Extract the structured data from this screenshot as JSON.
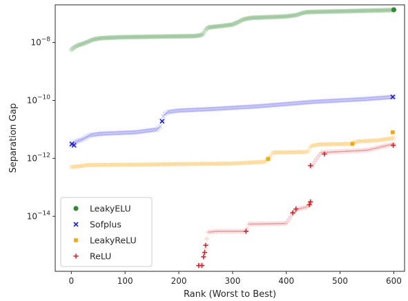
{
  "chart_data": {
    "type": "scatter",
    "xlabel": "Rank (Worst to Best)",
    "ylabel": "Separation Gap",
    "yscale": "log",
    "xlim": [
      -30,
      620
    ],
    "ylim_log10": [
      -15.9,
      -6.7
    ],
    "x_ticks": [
      0,
      100,
      200,
      300,
      400,
      500,
      600
    ],
    "y_ticks": [
      {
        "log10": -8,
        "base": "10",
        "exp": "−8"
      },
      {
        "log10": -10,
        "base": "10",
        "exp": "−10"
      },
      {
        "log10": -12,
        "base": "10",
        "exp": "−12"
      },
      {
        "log10": -14,
        "base": "10",
        "exp": "−14"
      }
    ],
    "grid": false,
    "legend_position": "lower-left",
    "series": [
      {
        "name": "LeakyELU",
        "color": "#2e8b2e",
        "marker": "circle",
        "x_range": [
          0,
          600
        ],
        "profile": [
          [
            0,
            -8.25
          ],
          [
            5,
            -8.17
          ],
          [
            12,
            -8.1
          ],
          [
            25,
            -8.02
          ],
          [
            40,
            -7.9
          ],
          [
            55,
            -7.85
          ],
          [
            90,
            -7.82
          ],
          [
            150,
            -7.8
          ],
          [
            230,
            -7.78
          ],
          [
            240,
            -7.75
          ],
          [
            245,
            -7.72
          ],
          [
            250,
            -7.55
          ],
          [
            255,
            -7.48
          ],
          [
            280,
            -7.43
          ],
          [
            300,
            -7.38
          ],
          [
            310,
            -7.3
          ],
          [
            320,
            -7.2
          ],
          [
            335,
            -7.15
          ],
          [
            400,
            -7.1
          ],
          [
            420,
            -7.05
          ],
          [
            430,
            -6.98
          ],
          [
            440,
            -6.95
          ],
          [
            600,
            -6.88
          ]
        ],
        "highlighted": [
          [
            600,
            -6.87
          ]
        ]
      },
      {
        "name": "Sofplus",
        "color": "#1a1aff",
        "marker": "x",
        "x_range": [
          0,
          600
        ],
        "profile": [
          [
            0,
            -11.55
          ],
          [
            5,
            -11.45
          ],
          [
            20,
            -11.35
          ],
          [
            35,
            -11.2
          ],
          [
            55,
            -11.15
          ],
          [
            120,
            -11.1
          ],
          [
            160,
            -11.0
          ],
          [
            165,
            -10.9
          ],
          [
            168,
            -10.7
          ],
          [
            172,
            -10.5
          ],
          [
            180,
            -10.4
          ],
          [
            200,
            -10.35
          ],
          [
            260,
            -10.3
          ],
          [
            350,
            -10.2
          ],
          [
            450,
            -10.05
          ],
          [
            550,
            -9.95
          ],
          [
            600,
            -9.88
          ]
        ],
        "highlighted": [
          [
            1,
            -11.5
          ],
          [
            5,
            -11.55
          ],
          [
            169,
            -10.72
          ],
          [
            598,
            -9.88
          ]
        ]
      },
      {
        "name": "LeakyReLU",
        "color": "#ffa500",
        "marker": "square",
        "x_range": [
          0,
          600
        ],
        "profile": [
          [
            0,
            -12.3
          ],
          [
            15,
            -12.27
          ],
          [
            30,
            -12.23
          ],
          [
            100,
            -12.22
          ],
          [
            200,
            -12.2
          ],
          [
            300,
            -12.18
          ],
          [
            360,
            -12.12
          ],
          [
            368,
            -11.98
          ],
          [
            375,
            -11.8
          ],
          [
            440,
            -11.78
          ],
          [
            445,
            -11.58
          ],
          [
            460,
            -11.52
          ],
          [
            520,
            -11.5
          ],
          [
            530,
            -11.42
          ],
          [
            570,
            -11.38
          ],
          [
            600,
            -11.3
          ]
        ],
        "highlighted": [
          [
            366,
            -12.02
          ],
          [
            523,
            -11.5
          ],
          [
            598,
            -11.1
          ]
        ]
      },
      {
        "name": "ReLU",
        "color": "#e8161b",
        "marker": "plus",
        "x_range": [
          237,
          600
        ],
        "profile": [
          [
            237,
            -15.7
          ],
          [
            243,
            -15.68
          ],
          [
            246,
            -15.4
          ],
          [
            248,
            -15.25
          ],
          [
            250,
            -15.0
          ],
          [
            254,
            -14.55
          ],
          [
            270,
            -14.52
          ],
          [
            325,
            -14.52
          ],
          [
            330,
            -14.27
          ],
          [
            400,
            -14.25
          ],
          [
            405,
            -14.1
          ],
          [
            412,
            -13.88
          ],
          [
            420,
            -13.75
          ],
          [
            430,
            -13.72
          ],
          [
            440,
            -13.66
          ],
          [
            445,
            -13.5
          ],
          [
            446,
            -12.32
          ],
          [
            455,
            -12.05
          ],
          [
            465,
            -11.8
          ],
          [
            550,
            -11.72
          ],
          [
            600,
            -11.5
          ]
        ],
        "highlighted": [
          [
            237,
            -15.7
          ],
          [
            243,
            -15.7
          ],
          [
            246,
            -15.4
          ],
          [
            248,
            -15.25
          ],
          [
            250,
            -15.0
          ],
          [
            325,
            -14.52
          ],
          [
            412,
            -13.88
          ],
          [
            418,
            -13.75
          ],
          [
            443,
            -13.6
          ],
          [
            445,
            -13.5
          ],
          [
            445,
            -12.25
          ],
          [
            471,
            -11.85
          ],
          [
            599,
            -11.55
          ]
        ]
      }
    ]
  }
}
